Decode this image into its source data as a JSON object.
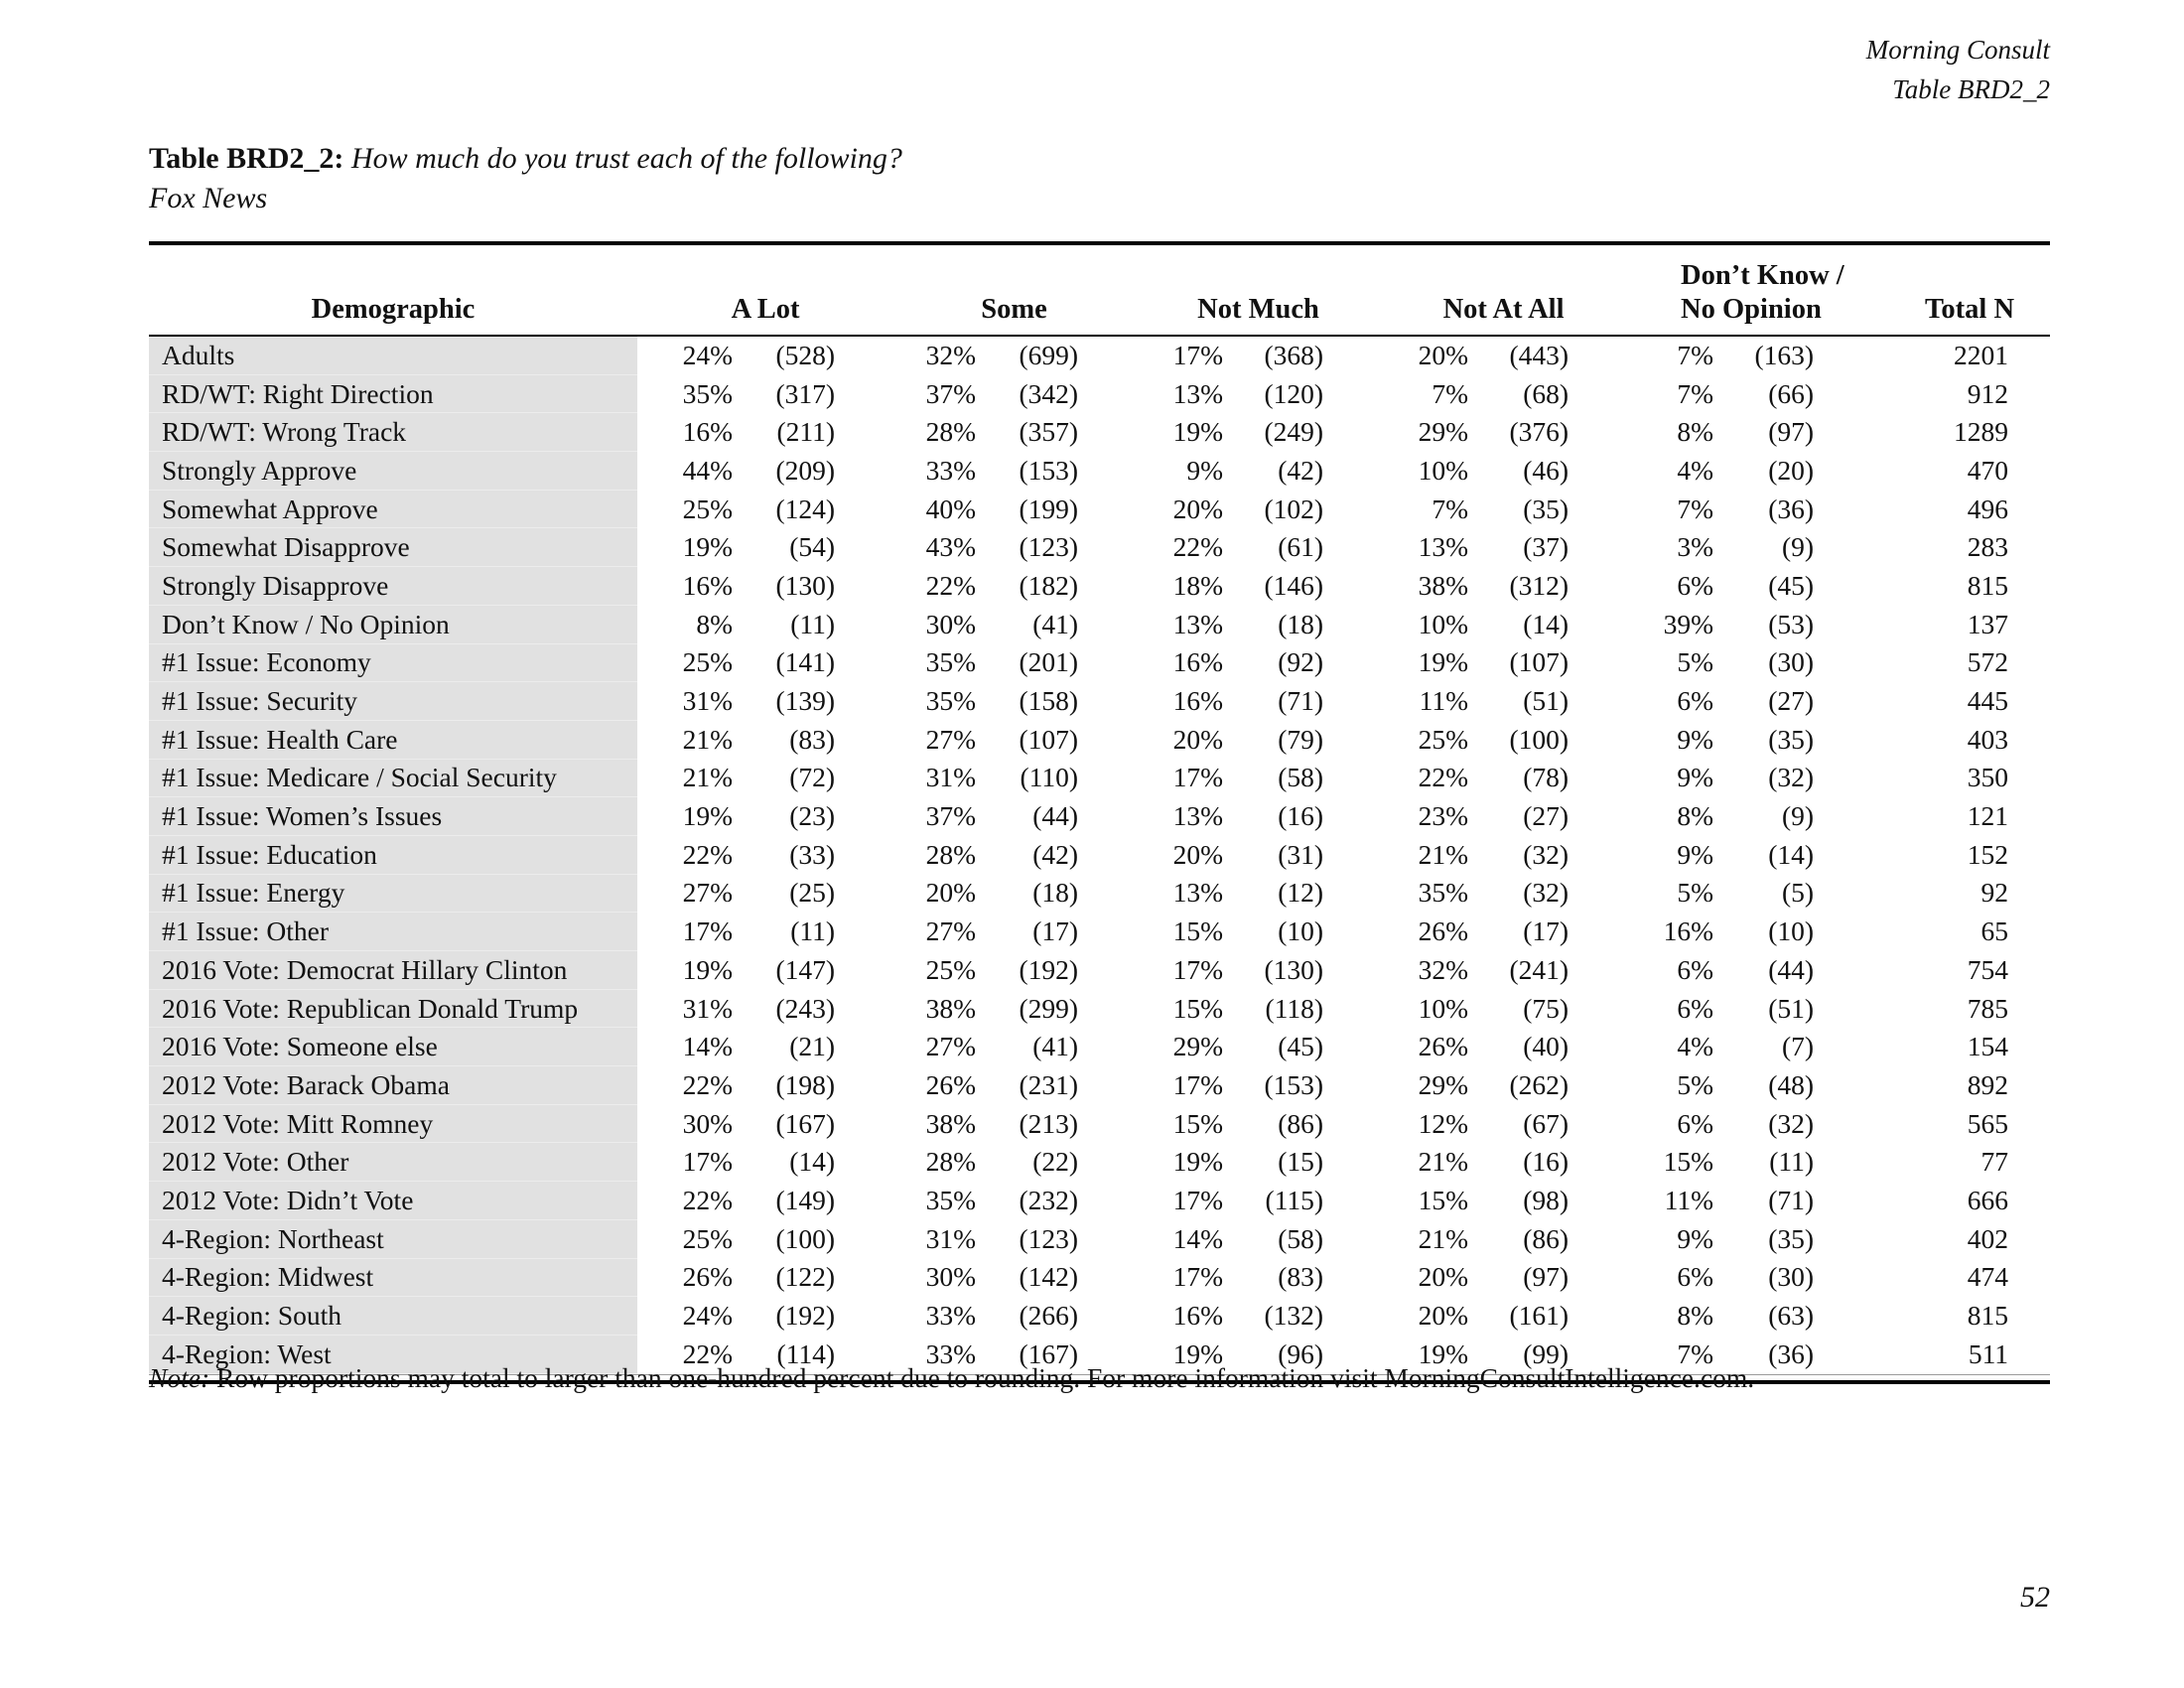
{
  "page_header": {
    "brand": "Morning Consult",
    "table_ref": "Table BRD2_2"
  },
  "title": {
    "label": "Table BRD2_2:",
    "question": "How much do you trust each of the following?",
    "subject": "Fox News"
  },
  "table": {
    "headers": {
      "demographic": "Demographic",
      "a_lot": "A Lot",
      "some": "Some",
      "not_much": "Not Much",
      "not_at_all": "Not At All",
      "dk_line1": "Don’t Know /",
      "dk_line2": "No Opinion",
      "total_n": "Total N"
    },
    "rows": [
      {
        "label": "Adults",
        "cells": [
          "24%",
          "(528)",
          "32%",
          "(699)",
          "17%",
          "(368)",
          "20%",
          "(443)",
          "7%",
          "(163)"
        ],
        "total": "2201"
      },
      {
        "label": "RD/WT: Right Direction",
        "cells": [
          "35%",
          "(317)",
          "37%",
          "(342)",
          "13%",
          "(120)",
          "7%",
          "(68)",
          "7%",
          "(66)"
        ],
        "total": "912"
      },
      {
        "label": "RD/WT: Wrong Track",
        "cells": [
          "16%",
          "(211)",
          "28%",
          "(357)",
          "19%",
          "(249)",
          "29%",
          "(376)",
          "8%",
          "(97)"
        ],
        "total": "1289"
      },
      {
        "label": "Strongly Approve",
        "cells": [
          "44%",
          "(209)",
          "33%",
          "(153)",
          "9%",
          "(42)",
          "10%",
          "(46)",
          "4%",
          "(20)"
        ],
        "total": "470"
      },
      {
        "label": "Somewhat Approve",
        "cells": [
          "25%",
          "(124)",
          "40%",
          "(199)",
          "20%",
          "(102)",
          "7%",
          "(35)",
          "7%",
          "(36)"
        ],
        "total": "496"
      },
      {
        "label": "Somewhat Disapprove",
        "cells": [
          "19%",
          "(54)",
          "43%",
          "(123)",
          "22%",
          "(61)",
          "13%",
          "(37)",
          "3%",
          "(9)"
        ],
        "total": "283"
      },
      {
        "label": "Strongly Disapprove",
        "cells": [
          "16%",
          "(130)",
          "22%",
          "(182)",
          "18%",
          "(146)",
          "38%",
          "(312)",
          "6%",
          "(45)"
        ],
        "total": "815"
      },
      {
        "label": "Don’t Know / No Opinion",
        "cells": [
          "8%",
          "(11)",
          "30%",
          "(41)",
          "13%",
          "(18)",
          "10%",
          "(14)",
          "39%",
          "(53)"
        ],
        "total": "137"
      },
      {
        "label": "#1 Issue: Economy",
        "cells": [
          "25%",
          "(141)",
          "35%",
          "(201)",
          "16%",
          "(92)",
          "19%",
          "(107)",
          "5%",
          "(30)"
        ],
        "total": "572"
      },
      {
        "label": "#1 Issue: Security",
        "cells": [
          "31%",
          "(139)",
          "35%",
          "(158)",
          "16%",
          "(71)",
          "11%",
          "(51)",
          "6%",
          "(27)"
        ],
        "total": "445"
      },
      {
        "label": "#1 Issue: Health Care",
        "cells": [
          "21%",
          "(83)",
          "27%",
          "(107)",
          "20%",
          "(79)",
          "25%",
          "(100)",
          "9%",
          "(35)"
        ],
        "total": "403"
      },
      {
        "label": "#1 Issue: Medicare / Social Security",
        "cells": [
          "21%",
          "(72)",
          "31%",
          "(110)",
          "17%",
          "(58)",
          "22%",
          "(78)",
          "9%",
          "(32)"
        ],
        "total": "350"
      },
      {
        "label": "#1 Issue: Women’s Issues",
        "cells": [
          "19%",
          "(23)",
          "37%",
          "(44)",
          "13%",
          "(16)",
          "23%",
          "(27)",
          "8%",
          "(9)"
        ],
        "total": "121"
      },
      {
        "label": "#1 Issue: Education",
        "cells": [
          "22%",
          "(33)",
          "28%",
          "(42)",
          "20%",
          "(31)",
          "21%",
          "(32)",
          "9%",
          "(14)"
        ],
        "total": "152"
      },
      {
        "label": "#1 Issue: Energy",
        "cells": [
          "27%",
          "(25)",
          "20%",
          "(18)",
          "13%",
          "(12)",
          "35%",
          "(32)",
          "5%",
          "(5)"
        ],
        "total": "92"
      },
      {
        "label": "#1 Issue: Other",
        "cells": [
          "17%",
          "(11)",
          "27%",
          "(17)",
          "15%",
          "(10)",
          "26%",
          "(17)",
          "16%",
          "(10)"
        ],
        "total": "65"
      },
      {
        "label": "2016 Vote: Democrat Hillary Clinton",
        "cells": [
          "19%",
          "(147)",
          "25%",
          "(192)",
          "17%",
          "(130)",
          "32%",
          "(241)",
          "6%",
          "(44)"
        ],
        "total": "754"
      },
      {
        "label": "2016 Vote: Republican Donald Trump",
        "cells": [
          "31%",
          "(243)",
          "38%",
          "(299)",
          "15%",
          "(118)",
          "10%",
          "(75)",
          "6%",
          "(51)"
        ],
        "total": "785"
      },
      {
        "label": "2016 Vote: Someone else",
        "cells": [
          "14%",
          "(21)",
          "27%",
          "(41)",
          "29%",
          "(45)",
          "26%",
          "(40)",
          "4%",
          "(7)"
        ],
        "total": "154"
      },
      {
        "label": "2012 Vote: Barack Obama",
        "cells": [
          "22%",
          "(198)",
          "26%",
          "(231)",
          "17%",
          "(153)",
          "29%",
          "(262)",
          "5%",
          "(48)"
        ],
        "total": "892"
      },
      {
        "label": "2012 Vote: Mitt Romney",
        "cells": [
          "30%",
          "(167)",
          "38%",
          "(213)",
          "15%",
          "(86)",
          "12%",
          "(67)",
          "6%",
          "(32)"
        ],
        "total": "565"
      },
      {
        "label": "2012 Vote: Other",
        "cells": [
          "17%",
          "(14)",
          "28%",
          "(22)",
          "19%",
          "(15)",
          "21%",
          "(16)",
          "15%",
          "(11)"
        ],
        "total": "77"
      },
      {
        "label": "2012 Vote: Didn’t Vote",
        "cells": [
          "22%",
          "(149)",
          "35%",
          "(232)",
          "17%",
          "(115)",
          "15%",
          "(98)",
          "11%",
          "(71)"
        ],
        "total": "666"
      },
      {
        "label": "4-Region: Northeast",
        "cells": [
          "25%",
          "(100)",
          "31%",
          "(123)",
          "14%",
          "(58)",
          "21%",
          "(86)",
          "9%",
          "(35)"
        ],
        "total": "402"
      },
      {
        "label": "4-Region: Midwest",
        "cells": [
          "26%",
          "(122)",
          "30%",
          "(142)",
          "17%",
          "(83)",
          "20%",
          "(97)",
          "6%",
          "(30)"
        ],
        "total": "474"
      },
      {
        "label": "4-Region: South",
        "cells": [
          "24%",
          "(192)",
          "33%",
          "(266)",
          "16%",
          "(132)",
          "20%",
          "(161)",
          "8%",
          "(63)"
        ],
        "total": "815"
      },
      {
        "label": "4-Region: West",
        "cells": [
          "22%",
          "(114)",
          "33%",
          "(167)",
          "19%",
          "(96)",
          "19%",
          "(99)",
          "7%",
          "(36)"
        ],
        "total": "511"
      }
    ]
  },
  "note": {
    "label": "Note:",
    "text": "Row proportions may total to larger than one-hundred percent due to rounding. For more information visit MorningConsultIntelligence.com."
  },
  "page_number": "52",
  "colors": {
    "row_label_bg": "#e1e1e1",
    "text": "#111111",
    "rule": "#000000"
  }
}
